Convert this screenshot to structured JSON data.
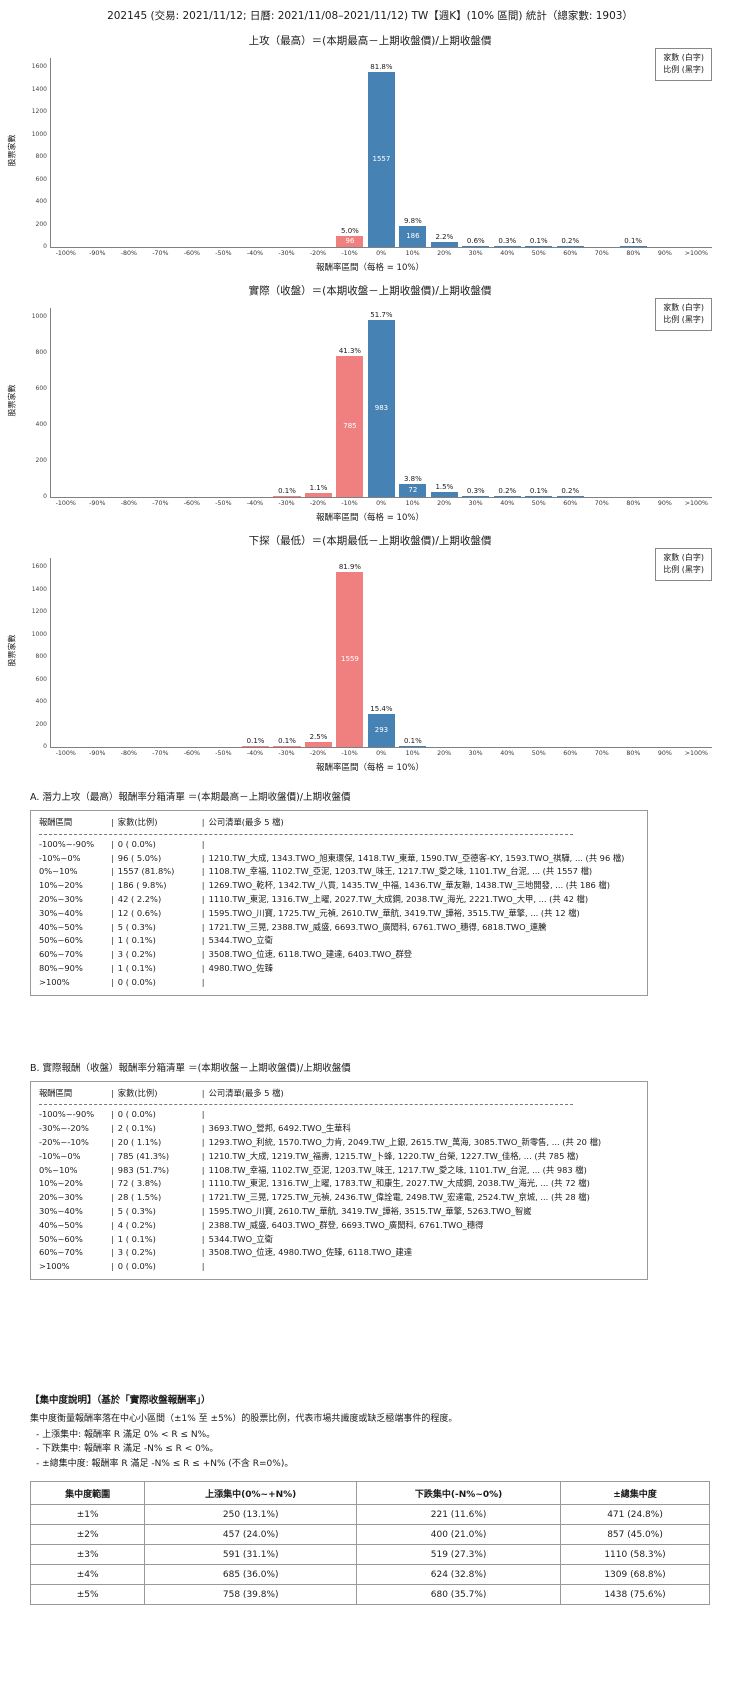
{
  "page_title": "202145 (交易: 2021/11/12; 日曆: 2021/11/08–2021/11/12) TW【週K】(10% 區間) 統計（總家數: 1903）",
  "colors": {
    "negative_bar": "#F08080",
    "positive_bar": "#4682B4",
    "axis": "#808080"
  },
  "legend": {
    "line1": "家數 (白字)",
    "line2": "比例 (黑字)"
  },
  "chart_data": [
    {
      "type": "bar",
      "title": "上攻（最高）＝(本期最高－上期收盤價)/上期收盤價",
      "ylabel": "股票家數",
      "xlabel": "報酬率區間（每格 = 10%）",
      "categories": [
        "-100%",
        "-90%",
        "-80%",
        "-70%",
        "-60%",
        "-50%",
        "-40%",
        "-30%",
        "-20%",
        "-10%",
        "0%",
        "10%",
        "20%",
        "30%",
        "40%",
        "50%",
        "60%",
        "70%",
        "80%",
        "90%",
        ">100%"
      ],
      "values": [
        0,
        0,
        0,
        0,
        0,
        0,
        0,
        0,
        0,
        96,
        1557,
        186,
        42,
        12,
        5,
        1,
        3,
        0,
        1,
        0,
        0
      ],
      "pct_labels": [
        "",
        "",
        "",
        "",
        "",
        "",
        "",
        "",
        "",
        "5.0%",
        "81.8%",
        "9.8%",
        "2.2%",
        "0.6%",
        "0.3%",
        "0.1%",
        "0.2%",
        "",
        "0.1%",
        "",
        ""
      ],
      "count_labels": [
        "",
        "",
        "",
        "",
        "",
        "",
        "",
        "",
        "",
        "96",
        "1557",
        "186",
        "",
        "",
        "",
        "",
        "",
        "",
        "",
        ""
      ],
      "yticks": [
        0,
        200,
        400,
        600,
        800,
        1000,
        1200,
        1400,
        1600
      ],
      "ylim": [
        0,
        1600
      ],
      "legend_position": "top-right",
      "grid": false
    },
    {
      "type": "bar",
      "title": "實際（收盤）＝(本期收盤－上期收盤價)/上期收盤價",
      "ylabel": "股票家數",
      "xlabel": "報酬率區間（每格 = 10%）",
      "categories": [
        "-100%",
        "-90%",
        "-80%",
        "-70%",
        "-60%",
        "-50%",
        "-40%",
        "-30%",
        "-20%",
        "-10%",
        "0%",
        "10%",
        "20%",
        "30%",
        "40%",
        "50%",
        "60%",
        "70%",
        "80%",
        "90%",
        ">100%"
      ],
      "values": [
        0,
        0,
        0,
        0,
        0,
        0,
        0,
        2,
        20,
        785,
        983,
        72,
        28,
        5,
        4,
        1,
        3,
        0,
        0,
        0,
        0
      ],
      "pct_labels": [
        "",
        "",
        "",
        "",
        "",
        "",
        "",
        "0.1%",
        "1.1%",
        "41.3%",
        "51.7%",
        "3.8%",
        "1.5%",
        "0.3%",
        "0.2%",
        "0.1%",
        "0.2%",
        "",
        "",
        "",
        ""
      ],
      "count_labels": [
        "",
        "",
        "",
        "",
        "",
        "",
        "",
        "",
        "",
        "785",
        "983",
        "72",
        "",
        "",
        "",
        "",
        "",
        "",
        "",
        ""
      ],
      "yticks": [
        0,
        200,
        400,
        600,
        800,
        1000
      ],
      "ylim": [
        0,
        1000
      ],
      "legend_position": "top-right",
      "grid": false
    },
    {
      "type": "bar",
      "title": "下探（最低）＝(本期最低－上期收盤價)/上期收盤價",
      "ylabel": "股票家數",
      "xlabel": "報酬率區間（每格 = 10%）",
      "categories": [
        "-100%",
        "-90%",
        "-80%",
        "-70%",
        "-60%",
        "-50%",
        "-40%",
        "-30%",
        "-20%",
        "-10%",
        "0%",
        "10%",
        "20%",
        "30%",
        "40%",
        "50%",
        "60%",
        "70%",
        "80%",
        "90%",
        ">100%"
      ],
      "values": [
        0,
        0,
        0,
        0,
        0,
        0,
        1,
        1,
        48,
        1559,
        293,
        1,
        0,
        0,
        0,
        0,
        0,
        0,
        0,
        0,
        0
      ],
      "pct_labels": [
        "",
        "",
        "",
        "",
        "",
        "",
        "0.1%",
        "0.1%",
        "2.5%",
        "81.9%",
        "15.4%",
        "0.1%",
        "",
        "",
        "",
        "",
        "",
        "",
        "",
        "",
        ""
      ],
      "count_labels": [
        "",
        "",
        "",
        "",
        "",
        "",
        "",
        "",
        "",
        "1559",
        "293",
        "",
        "",
        "",
        "",
        "",
        "",
        "",
        "",
        "",
        ""
      ],
      "yticks": [
        0,
        200,
        400,
        600,
        800,
        1000,
        1200,
        1400,
        1600
      ],
      "ylim": [
        0,
        1600
      ],
      "legend_position": "top-right",
      "grid": false
    }
  ],
  "lists": [
    {
      "title": "A. 潛力上攻（最高）報酬率分箱清單 ＝(本期最高－上期收盤價)/上期收盤價",
      "header": [
        "報酬區間",
        "家數(比例)",
        "公司清單(最多 5 檔)"
      ],
      "rows": [
        [
          "-100%~-90%",
          "0 ( 0.0%)",
          ""
        ],
        [
          "-10%~0%",
          "96 ( 5.0%)",
          "1210.TW_大成, 1343.TWO_旭東環保, 1418.TW_東華, 1590.TW_亞德客-KY, 1593.TWO_祺驊, ... (共 96 檔)"
        ],
        [
          "0%~10%",
          "1557 (81.8%)",
          "1108.TW_幸福, 1102.TW_亞泥, 1203.TW_味王, 1217.TW_愛之味, 1101.TW_台泥, ... (共 1557 檔)"
        ],
        [
          "10%~20%",
          "186 ( 9.8%)",
          "1269.TWO_乾杯, 1342.TW_八貫, 1435.TW_中福, 1436.TW_華友聯, 1438.TW_三地開發, ... (共 186 檔)"
        ],
        [
          "20%~30%",
          "42 ( 2.2%)",
          "1110.TW_東泥, 1316.TW_上曜, 2027.TW_大成鋼, 2038.TW_海光, 2221.TWO_大甲, ... (共 42 檔)"
        ],
        [
          "30%~40%",
          "12 ( 0.6%)",
          "1595.TWO_川寶, 1725.TW_元禎, 2610.TW_華航, 3419.TW_譁裕, 3515.TW_華擎, ... (共 12 檔)"
        ],
        [
          "40%~50%",
          "5 ( 0.3%)",
          "1721.TW_三晃, 2388.TW_威盛, 6693.TWO_廣閎科, 6761.TWO_穗得, 6818.TWO_連騰"
        ],
        [
          "50%~60%",
          "1 ( 0.1%)",
          "5344.TWO_立衛"
        ],
        [
          "60%~70%",
          "3 ( 0.2%)",
          "3508.TWO_位速, 6118.TWO_建達, 6403.TWO_群登"
        ],
        [
          "80%~90%",
          "1 ( 0.1%)",
          "4980.TWO_佐臻"
        ],
        [
          ">100%",
          "0 ( 0.0%)",
          ""
        ]
      ]
    },
    {
      "title": "B. 實際報酬（收盤）報酬率分箱清單 ＝(本期收盤－上期收盤價)/上期收盤價",
      "header": [
        "報酬區間",
        "家數(比例)",
        "公司清單(最多 5 檔)"
      ],
      "rows": [
        [
          "-100%~-90%",
          "0 ( 0.0%)",
          ""
        ],
        [
          "-30%~-20%",
          "2 ( 0.1%)",
          "3693.TWO_營邦, 6492.TWO_生華科"
        ],
        [
          "-20%~-10%",
          "20 ( 1.1%)",
          "1293.TWO_利統, 1570.TWO_力肯, 2049.TW_上銀, 2615.TW_萬海, 3085.TWO_新零售, ... (共 20 檔)"
        ],
        [
          "-10%~0%",
          "785 (41.3%)",
          "1210.TW_大成, 1219.TW_福壽, 1215.TW_卜蜂, 1220.TW_台榮, 1227.TW_佳格, ... (共 785 檔)"
        ],
        [
          "0%~10%",
          "983 (51.7%)",
          "1108.TW_幸福, 1102.TW_亞泥, 1203.TW_味王, 1217.TW_愛之味, 1101.TW_台泥, ... (共 983 檔)"
        ],
        [
          "10%~20%",
          "72 ( 3.8%)",
          "1110.TW_東泥, 1316.TW_上曜, 1783.TW_和康生, 2027.TW_大成鋼, 2038.TW_海光, ... (共 72 檔)"
        ],
        [
          "20%~30%",
          "28 ( 1.5%)",
          "1721.TW_三晃, 1725.TW_元禎, 2436.TW_偉詮電, 2498.TW_宏達電, 2524.TW_京城, ... (共 28 檔)"
        ],
        [
          "30%~40%",
          "5 ( 0.3%)",
          "1595.TWO_川寶, 2610.TW_華航, 3419.TW_譁裕, 3515.TW_華擎, 5263.TWO_智崴"
        ],
        [
          "40%~50%",
          "4 ( 0.2%)",
          "2388.TW_威盛, 6403.TWO_群登, 6693.TWO_廣閎科, 6761.TWO_穗得"
        ],
        [
          "50%~60%",
          "1 ( 0.1%)",
          "5344.TWO_立衛"
        ],
        [
          "60%~70%",
          "3 ( 0.2%)",
          "3508.TWO_位速, 4980.TWO_佐臻, 6118.TWO_建達"
        ],
        [
          ">100%",
          "0 ( 0.0%)",
          ""
        ]
      ]
    }
  ],
  "concentration": {
    "heading": "【集中度說明】（基於「實際收盤報酬率」）",
    "description": "集中度衡量報酬率落在中心小區間（±1% 至 ±5%）的股票比例，代表市場共識度或缺乏極端事件的程度。",
    "bullets": [
      "- 上漲集中: 報酬率 R 滿足 0% < R ≤ N%。",
      "- 下跌集中: 報酬率 R 滿足 -N% ≤ R < 0%。",
      "- ±總集中度: 報酬率 R 滿足 -N% ≤ R ≤ +N% (不含 R=0%)。"
    ],
    "table": {
      "headers": [
        "集中度範圍",
        "上漲集中(0%~+N%)",
        "下跌集中(-N%~0%)",
        "±總集中度"
      ],
      "rows": [
        [
          "±1%",
          "250 (13.1%)",
          "221 (11.6%)",
          "471 (24.8%)"
        ],
        [
          "±2%",
          "457 (24.0%)",
          "400 (21.0%)",
          "857 (45.0%)"
        ],
        [
          "±3%",
          "591 (31.1%)",
          "519 (27.3%)",
          "1110 (58.3%)"
        ],
        [
          "±4%",
          "685 (36.0%)",
          "624 (32.8%)",
          "1309 (68.8%)"
        ],
        [
          "±5%",
          "758 (39.8%)",
          "680 (35.7%)",
          "1438 (75.6%)"
        ]
      ]
    }
  }
}
